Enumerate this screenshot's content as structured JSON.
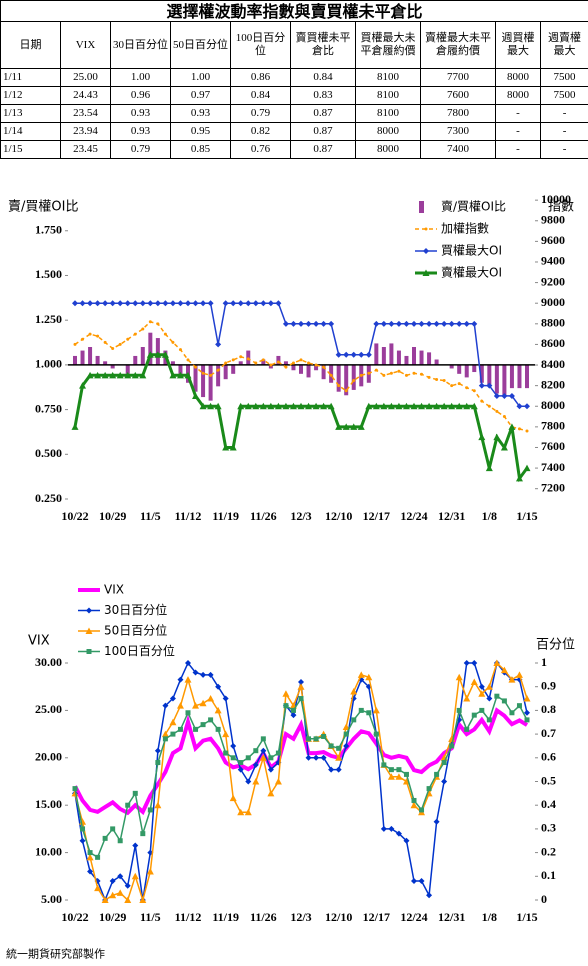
{
  "title": "選擇權波動率指數與賣買權未平倉比",
  "table": {
    "header": [
      "日期",
      "VIX",
      "30日百分位",
      "50日百分位",
      "100日百分位",
      "賣買權未平倉比",
      "買權最大未平倉履約價",
      "賣權最大未平倉履約價",
      "週買權最大",
      "週賣權最大"
    ],
    "rows": [
      [
        "1/11",
        "25.00",
        "1.00",
        "1.00",
        "0.86",
        "0.84",
        "8100",
        "7700",
        "8000",
        "7500"
      ],
      [
        "1/12",
        "24.43",
        "0.96",
        "0.97",
        "0.84",
        "0.83",
        "8100",
        "7600",
        "8000",
        "7500"
      ],
      [
        "1/13",
        "23.54",
        "0.93",
        "0.93",
        "0.79",
        "0.87",
        "8100",
        "7800",
        "-",
        "-"
      ],
      [
        "1/14",
        "23.94",
        "0.93",
        "0.95",
        "0.82",
        "0.87",
        "8000",
        "7300",
        "-",
        "-"
      ],
      [
        "1/15",
        "23.45",
        "0.79",
        "0.85",
        "0.76",
        "0.87",
        "8000",
        "7400",
        "-",
        "-"
      ]
    ]
  },
  "chart_data": [
    {
      "type": "combo",
      "y_label": "賣/買權OI比",
      "y2_label": "指數",
      "legend": "upper right",
      "grid": false,
      "bar_baseline": 1,
      "categories": [
        "10/22",
        null,
        null,
        null,
        null,
        "10/29",
        null,
        null,
        null,
        null,
        "11/5",
        null,
        null,
        null,
        null,
        "11/12",
        null,
        null,
        null,
        null,
        "11/19",
        null,
        null,
        null,
        null,
        "11/26",
        null,
        null,
        null,
        null,
        "12/3",
        null,
        null,
        null,
        null,
        "12/10",
        null,
        null,
        null,
        null,
        "12/17",
        null,
        null,
        null,
        null,
        "12/24",
        null,
        null,
        null,
        null,
        "12/31",
        null,
        null,
        null,
        null,
        "1/8",
        null,
        null,
        null,
        null,
        "1/15"
      ],
      "ylim": [
        0.25,
        1.95
      ],
      "yticks": [
        {
          "value": 0.25,
          "label": "0.250"
        },
        {
          "value": 0.5,
          "label": "0.500"
        },
        {
          "value": 0.75,
          "label": "0.750"
        },
        {
          "value": 1,
          "label": "1.000"
        },
        {
          "value": 1.25,
          "label": "1.250"
        },
        {
          "value": 1.5,
          "label": "1.500"
        },
        {
          "value": 1.75,
          "label": "1.750"
        }
      ],
      "y2lim": [
        7100,
        10050
      ],
      "y2ticks": [
        7200,
        7400,
        7600,
        7800,
        8000,
        8200,
        8400,
        8600,
        8800,
        9000,
        9200,
        9400,
        9600,
        9800,
        10000
      ],
      "series": [
        {
          "name": "賣/買權OI比",
          "type": "bar",
          "color": "#9b3d9b",
          "values": [
            1.05,
            1.08,
            1.1,
            1.05,
            1.02,
            0.98,
            1.0,
            0.95,
            1.05,
            1.1,
            1.18,
            1.15,
            1.08,
            1.02,
            0.95,
            0.9,
            0.85,
            0.82,
            0.8,
            0.88,
            0.92,
            0.95,
            1.02,
            1.08,
            1.0,
            1.03,
            0.98,
            1.05,
            1.02,
            0.97,
            0.95,
            0.93,
            0.97,
            0.92,
            0.9,
            0.85,
            0.83,
            0.86,
            0.88,
            0.9,
            1.12,
            1.1,
            1.12,
            1.08,
            1.05,
            1.1,
            1.08,
            1.07,
            1.03,
            1.0,
            0.98,
            0.95,
            0.93,
            0.96,
            0.9,
            0.88,
            0.84,
            0.83,
            0.87,
            0.87,
            0.87
          ]
        },
        {
          "name": "加權指數",
          "type": "line",
          "axis": "y2",
          "color": "#ff9900",
          "dash": true,
          "marker": "dot",
          "values": [
            8600,
            8650,
            8700,
            8680,
            8620,
            8560,
            8600,
            8650,
            8700,
            8750,
            8820,
            8800,
            8700,
            8620,
            8550,
            8450,
            8380,
            8320,
            8300,
            8350,
            8420,
            8450,
            8480,
            8460,
            8420,
            8450,
            8400,
            8430,
            8380,
            8420,
            8450,
            8420,
            8400,
            8380,
            8300,
            8200,
            8150,
            8250,
            8300,
            8320,
            8350,
            8300,
            8320,
            8340,
            8300,
            8320,
            8310,
            8280,
            8260,
            8250,
            8200,
            8220,
            8180,
            8150,
            8050,
            8000,
            7950,
            7900,
            7800,
            7780,
            7760
          ]
        },
        {
          "name": "買權最大OI",
          "type": "line",
          "axis": "y2",
          "color": "#2040d0",
          "marker": "diamond",
          "values": [
            9000,
            9000,
            9000,
            9000,
            9000,
            9000,
            9000,
            9000,
            9000,
            9000,
            9000,
            9000,
            9000,
            9000,
            9000,
            9000,
            9000,
            9000,
            9000,
            8600,
            9000,
            9000,
            9000,
            9000,
            9000,
            9000,
            9000,
            9000,
            8800,
            8800,
            8800,
            8800,
            8800,
            8800,
            8800,
            8500,
            8500,
            8500,
            8500,
            8500,
            8800,
            8800,
            8800,
            8800,
            8800,
            8800,
            8800,
            8800,
            8800,
            8800,
            8800,
            8800,
            8800,
            8800,
            8200,
            8200,
            8100,
            8100,
            8100,
            8000,
            8000
          ]
        },
        {
          "name": "賣權最大OI",
          "type": "line",
          "axis": "y2",
          "color": "#1a8a1a",
          "marker": "triangle",
          "width": 3,
          "values": [
            7800,
            8200,
            8300,
            8300,
            8300,
            8300,
            8300,
            8300,
            8300,
            8300,
            8500,
            8500,
            8500,
            8300,
            8300,
            8300,
            8100,
            8000,
            8000,
            8000,
            7600,
            7600,
            8000,
            8000,
            8000,
            8000,
            8000,
            8000,
            8000,
            8000,
            8000,
            8000,
            8000,
            8000,
            8000,
            7800,
            7800,
            7800,
            7800,
            8000,
            8000,
            8000,
            8000,
            8000,
            8000,
            8000,
            8000,
            8000,
            8000,
            8000,
            8000,
            8000,
            8000,
            8000,
            7700,
            7400,
            7700,
            7600,
            7800,
            7300,
            7400
          ]
        }
      ]
    },
    {
      "type": "line",
      "y_label": "VIX",
      "y2_label": "百分位",
      "legend": "upper left",
      "grid": false,
      "categories": [
        "10/22",
        null,
        null,
        null,
        null,
        "10/29",
        null,
        null,
        null,
        null,
        "11/5",
        null,
        null,
        null,
        null,
        "11/12",
        null,
        null,
        null,
        null,
        "11/19",
        null,
        null,
        null,
        null,
        "11/26",
        null,
        null,
        null,
        null,
        "12/3",
        null,
        null,
        null,
        null,
        "12/10",
        null,
        null,
        null,
        null,
        "12/17",
        null,
        null,
        null,
        null,
        "12/24",
        null,
        null,
        null,
        null,
        "12/31",
        null,
        null,
        null,
        null,
        "1/8",
        null,
        null,
        null,
        null,
        "1/15"
      ],
      "ylim": [
        5,
        30
      ],
      "yticks": [
        {
          "value": 5,
          "label": "5.00"
        },
        {
          "value": 10,
          "label": "10.00"
        },
        {
          "value": 15,
          "label": "15.00"
        },
        {
          "value": 20,
          "label": "20.00"
        },
        {
          "value": 25,
          "label": "25.00"
        },
        {
          "value": 30,
          "label": "30.00"
        }
      ],
      "y2lim": [
        0,
        1
      ],
      "y2ticks": [
        0,
        0.1,
        0.2,
        0.3,
        0.4,
        0.5,
        0.6,
        0.7,
        0.8,
        0.9,
        1
      ],
      "series": [
        {
          "name": "VIX",
          "color": "#ff00ff",
          "marker": "none",
          "width": 4,
          "values": [
            17.0,
            15.5,
            14.5,
            14.3,
            14.8,
            15.3,
            14.6,
            14.2,
            15.0,
            14.3,
            16.0,
            17.2,
            18.5,
            20.5,
            21.0,
            23.8,
            21.0,
            21.8,
            22.0,
            21.0,
            19.5,
            19.0,
            19.2,
            18.8,
            19.3,
            20.5,
            19.0,
            19.6,
            22.5,
            22.0,
            23.5,
            20.5,
            20.5,
            20.6,
            20.2,
            20.0,
            21.0,
            22.0,
            22.8,
            22.6,
            21.5,
            20.3,
            20.0,
            20.2,
            20.0,
            18.7,
            18.5,
            19.2,
            19.6,
            20.5,
            21.0,
            23.5,
            22.5,
            23.0,
            24.0,
            22.8,
            25.0,
            24.43,
            23.54,
            23.94,
            23.45
          ]
        },
        {
          "name": "30日百分位",
          "axis": "y2",
          "color": "#0033cc",
          "marker": "diamond",
          "values": [
            0.45,
            0.25,
            0.12,
            0.08,
            0,
            0.08,
            0.1,
            0.06,
            0.23,
            0,
            0.2,
            0.63,
            0.82,
            0.85,
            0.93,
            1.0,
            0.96,
            0.95,
            0.95,
            0.9,
            0.85,
            0.65,
            0.55,
            0.5,
            0.57,
            0.63,
            0.55,
            0.58,
            0.82,
            0.78,
            0.92,
            0.6,
            0.6,
            0.6,
            0.55,
            0.55,
            0.65,
            0.85,
            0.93,
            0.9,
            0.7,
            0.3,
            0.3,
            0.28,
            0.25,
            0.08,
            0.08,
            0.02,
            0.33,
            0.5,
            0.67,
            0.76,
            1.0,
            1.0,
            0.9,
            0.85,
            1.0,
            0.96,
            0.93,
            0.93,
            0.79
          ]
        },
        {
          "name": "50日百分位",
          "axis": "y2",
          "color": "#ff9900",
          "marker": "triangle",
          "values": [
            0.45,
            0.33,
            0.18,
            0.05,
            0,
            0.02,
            0.03,
            0,
            0.1,
            0,
            0.12,
            0.4,
            0.7,
            0.75,
            0.82,
            0.93,
            0.82,
            0.83,
            0.85,
            0.8,
            0.7,
            0.43,
            0.37,
            0.37,
            0.5,
            0.6,
            0.45,
            0.5,
            0.87,
            0.82,
            0.9,
            0.68,
            0.68,
            0.7,
            0.65,
            0.6,
            0.73,
            0.88,
            0.95,
            0.94,
            0.8,
            0.57,
            0.52,
            0.52,
            0.5,
            0.4,
            0.37,
            0.45,
            0.52,
            0.6,
            0.68,
            0.94,
            0.85,
            0.92,
            0.87,
            0.9,
            1.0,
            0.97,
            0.93,
            0.95,
            0.85
          ]
        },
        {
          "name": "100日百分位",
          "axis": "y2",
          "color": "#339966",
          "marker": "square",
          "values": [
            0.47,
            0.3,
            0.2,
            0.18,
            0.26,
            0.3,
            0.25,
            0.4,
            0.45,
            0.28,
            0.38,
            0.58,
            0.68,
            0.7,
            0.72,
            0.79,
            0.72,
            0.74,
            0.76,
            0.72,
            0.62,
            0.6,
            0.58,
            0.6,
            0.63,
            0.68,
            0.6,
            0.62,
            0.82,
            0.8,
            0.85,
            0.68,
            0.68,
            0.69,
            0.65,
            0.64,
            0.7,
            0.76,
            0.8,
            0.79,
            0.7,
            0.57,
            0.55,
            0.55,
            0.53,
            0.42,
            0.38,
            0.47,
            0.53,
            0.58,
            0.65,
            0.8,
            0.72,
            0.78,
            0.8,
            0.76,
            0.86,
            0.84,
            0.79,
            0.82,
            0.76
          ]
        }
      ]
    }
  ],
  "footer": "統一期貨研究部製作"
}
